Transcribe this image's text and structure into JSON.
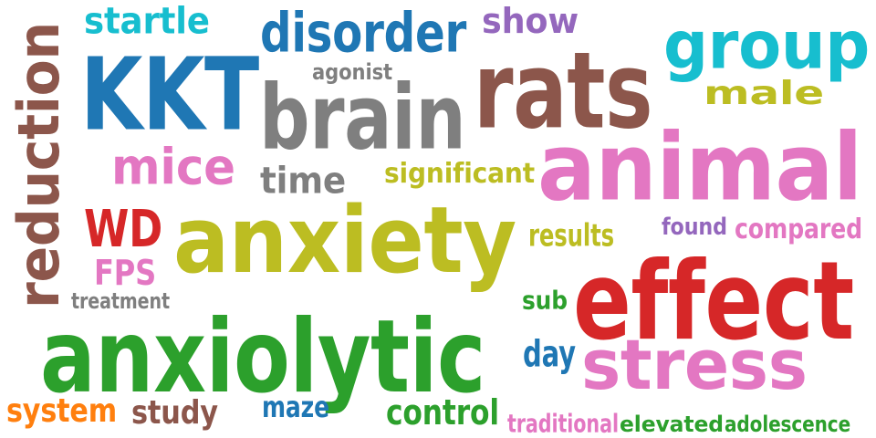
{
  "words": [
    {
      "text": "startle",
      "color": "#17becf"
    },
    {
      "text": "disorder",
      "color": "#1f77b4"
    },
    {
      "text": "show",
      "color": "#9467bd"
    },
    {
      "text": "reduction",
      "color": "#8c564b"
    },
    {
      "text": "KKT",
      "color": "#1f77b4"
    },
    {
      "text": "agonist",
      "color": "#7f7f7f"
    },
    {
      "text": "rats",
      "color": "#8c564b"
    },
    {
      "text": "group",
      "color": "#17becf"
    },
    {
      "text": "brain",
      "color": "#7f7f7f"
    },
    {
      "text": "male",
      "color": "#bcbd22"
    },
    {
      "text": "mice",
      "color": "#e377c2"
    },
    {
      "text": "time",
      "color": "#7f7f7f"
    },
    {
      "text": "significant",
      "color": "#bcbd22"
    },
    {
      "text": "animal",
      "color": "#e377c2"
    },
    {
      "text": "WD",
      "color": "#d62728"
    },
    {
      "text": "anxiety",
      "color": "#bcbd22"
    },
    {
      "text": "found",
      "color": "#9467bd"
    },
    {
      "text": "compared",
      "color": "#e377c2"
    },
    {
      "text": "results",
      "color": "#bcbd22"
    },
    {
      "text": "FPS",
      "color": "#e377c2"
    },
    {
      "text": "effect",
      "color": "#d62728"
    },
    {
      "text": "treatment",
      "color": "#7f7f7f"
    },
    {
      "text": "sub",
      "color": "#2ca02c"
    },
    {
      "text": "anxiolytic",
      "color": "#2ca02c"
    },
    {
      "text": "day",
      "color": "#1f77b4"
    },
    {
      "text": "stress",
      "color": "#e377c2"
    },
    {
      "text": "system",
      "color": "#ff7f0e"
    },
    {
      "text": "study",
      "color": "#8c564b"
    },
    {
      "text": "maze",
      "color": "#1f77b4"
    },
    {
      "text": "control",
      "color": "#2ca02c"
    },
    {
      "text": "traditional",
      "color": "#e377c2"
    },
    {
      "text": "elevated",
      "color": "#2ca02c"
    },
    {
      "text": "adolescence",
      "color": "#2ca02c"
    }
  ]
}
